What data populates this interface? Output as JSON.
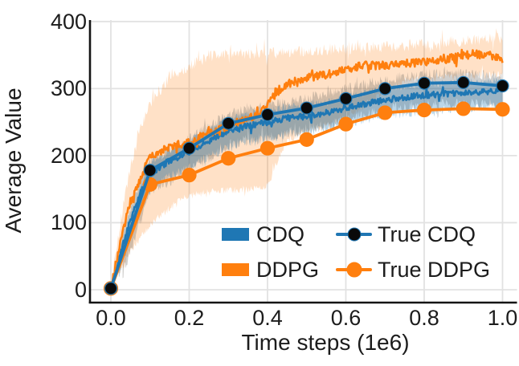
{
  "figure": {
    "background": "#ffffff",
    "text_color": "#1c1c1c",
    "grid_color": "#e2e2e2",
    "spine_color": "#141414"
  },
  "chart_data": {
    "type": "line",
    "title": "",
    "xlabel": "Time steps (1e6)",
    "ylabel": "Average Value",
    "xlim": [
      -0.055,
      1.04
    ],
    "ylim": [
      -18,
      402
    ],
    "grid": true,
    "legend_position": "lower-right-inside",
    "xticks": [
      {
        "value": 0.0,
        "label": "0.0"
      },
      {
        "value": 0.2,
        "label": "0.2"
      },
      {
        "value": 0.4,
        "label": "0.4"
      },
      {
        "value": 0.6,
        "label": "0.6"
      },
      {
        "value": 0.8,
        "label": "0.8"
      },
      {
        "value": 1.0,
        "label": "1.0"
      }
    ],
    "yticks": [
      {
        "value": 0,
        "label": "0"
      },
      {
        "value": 100,
        "label": "100"
      },
      {
        "value": 200,
        "label": "200"
      },
      {
        "value": 300,
        "label": "300"
      },
      {
        "value": 400,
        "label": "400"
      }
    ],
    "series": [
      {
        "name": "CDQ",
        "style": "noisy-line",
        "color": "#1f77b4",
        "width": 2.6,
        "noise_amp": 4.5,
        "seed": 11,
        "anchors": [
          [
            0,
            0
          ],
          [
            0.02,
            45
          ],
          [
            0.05,
            105
          ],
          [
            0.08,
            152
          ],
          [
            0.1,
            172
          ],
          [
            0.15,
            193
          ],
          [
            0.2,
            206
          ],
          [
            0.25,
            222
          ],
          [
            0.3,
            237
          ],
          [
            0.35,
            245
          ],
          [
            0.4,
            250
          ],
          [
            0.45,
            256
          ],
          [
            0.5,
            259
          ],
          [
            0.55,
            264
          ],
          [
            0.6,
            271
          ],
          [
            0.65,
            277
          ],
          [
            0.7,
            283
          ],
          [
            0.75,
            287
          ],
          [
            0.8,
            290
          ],
          [
            0.85,
            292
          ],
          [
            0.9,
            293
          ],
          [
            0.95,
            295
          ],
          [
            1,
            299
          ]
        ]
      },
      {
        "name": "DDPG",
        "style": "noisy-line",
        "color": "#ff7f0e",
        "width": 2.6,
        "noise_amp": 6,
        "seed": 23,
        "anchors": [
          [
            0,
            0
          ],
          [
            0.02,
            60
          ],
          [
            0.05,
            132
          ],
          [
            0.08,
            172
          ],
          [
            0.1,
            200
          ],
          [
            0.15,
            213
          ],
          [
            0.2,
            221
          ],
          [
            0.25,
            234
          ],
          [
            0.3,
            244
          ],
          [
            0.35,
            256
          ],
          [
            0.38,
            262
          ],
          [
            0.4,
            275
          ],
          [
            0.42,
            292
          ],
          [
            0.45,
            307
          ],
          [
            0.5,
            316
          ],
          [
            0.55,
            321
          ],
          [
            0.6,
            329
          ],
          [
            0.65,
            335
          ],
          [
            0.7,
            334
          ],
          [
            0.75,
            337
          ],
          [
            0.8,
            340
          ],
          [
            0.85,
            343
          ],
          [
            0.9,
            350
          ],
          [
            0.93,
            352
          ],
          [
            0.96,
            349
          ],
          [
            1,
            343
          ]
        ]
      },
      {
        "name": "True CDQ",
        "style": "line-markers",
        "line_color": "#1f77b4",
        "marker_color": "#0a0a0a",
        "marker_edge": "#1f77b4",
        "marker_radius": 7.5,
        "width": 3.8,
        "x": [
          0,
          0.1,
          0.2,
          0.3,
          0.4,
          0.5,
          0.6,
          0.7,
          0.8,
          0.9,
          1.0
        ],
        "y": [
          2,
          178,
          211,
          248,
          261,
          271,
          285,
          300,
          308,
          309,
          304
        ]
      },
      {
        "name": "True DDPG",
        "style": "line-markers",
        "line_color": "#ff7f0e",
        "marker_color": "#ff7f0e",
        "marker_edge": "#ff7f0e",
        "marker_radius": 8.5,
        "width": 3.8,
        "x": [
          0,
          0.1,
          0.2,
          0.3,
          0.4,
          0.5,
          0.6,
          0.7,
          0.8,
          0.9,
          1.0
        ],
        "y": [
          2,
          157,
          171,
          196,
          211,
          224,
          247,
          264,
          268,
          270,
          269
        ]
      }
    ],
    "bands": [
      {
        "name": "ddpg-std-band",
        "color": "rgba(255,127,14,0.23)",
        "seed": 5,
        "x_range": [
          0,
          1
        ],
        "top_amp": 9,
        "bottom_amp": 6,
        "top": [
          [
            0,
            4
          ],
          [
            0.02,
            85
          ],
          [
            0.05,
            185
          ],
          [
            0.08,
            248
          ],
          [
            0.1,
            278
          ],
          [
            0.15,
            318
          ],
          [
            0.2,
            333
          ],
          [
            0.25,
            349
          ],
          [
            0.3,
            352
          ],
          [
            0.4,
            352
          ],
          [
            0.5,
            356
          ],
          [
            0.6,
            360
          ],
          [
            0.7,
            362
          ],
          [
            0.8,
            366
          ],
          [
            0.9,
            371
          ],
          [
            1,
            375
          ]
        ],
        "bottom": [
          [
            0,
            0
          ],
          [
            0.02,
            22
          ],
          [
            0.05,
            56
          ],
          [
            0.08,
            82
          ],
          [
            0.1,
            97
          ],
          [
            0.15,
            122
          ],
          [
            0.2,
            140
          ],
          [
            0.25,
            146
          ],
          [
            0.3,
            148
          ],
          [
            0.35,
            150
          ],
          [
            0.4,
            154
          ],
          [
            0.42,
            185
          ],
          [
            0.45,
            222
          ],
          [
            0.5,
            236
          ],
          [
            0.55,
            246
          ],
          [
            0.6,
            256
          ],
          [
            0.65,
            276
          ],
          [
            0.7,
            296
          ],
          [
            0.75,
            310
          ],
          [
            0.8,
            315
          ],
          [
            0.85,
            317
          ],
          [
            0.9,
            318
          ],
          [
            0.95,
            320
          ],
          [
            1,
            322
          ]
        ]
      },
      {
        "name": "true-cdq-std-band",
        "color": "rgba(112,108,104,0.33)",
        "seed": 9,
        "x_range": [
          0.03,
          1
        ],
        "top_amp": 8,
        "bottom_amp": 9,
        "center_from": "True CDQ",
        "plus": 14,
        "minus": 32
      },
      {
        "name": "cdq-std-band",
        "color": "rgba(31,119,180,0.30)",
        "seed": 17,
        "x_range": [
          0.02,
          1
        ],
        "top_amp": 6,
        "bottom_amp": 7,
        "center_from": "CDQ",
        "plus": 16,
        "minus": 24
      }
    ],
    "legend": {
      "items": [
        {
          "label": "CDQ",
          "type": "patch",
          "color": "#1f77b4"
        },
        {
          "label": "DDPG",
          "type": "patch",
          "color": "#ff7f0e"
        },
        {
          "label": "True CDQ",
          "type": "line-marker",
          "line_color": "#1f77b4",
          "dot_color": "#0a0a0a",
          "dot_size": 15
        },
        {
          "label": "True DDPG",
          "type": "line-marker",
          "line_color": "#ff7f0e",
          "dot_color": "#ff7f0e",
          "dot_size": 17
        }
      ]
    }
  }
}
